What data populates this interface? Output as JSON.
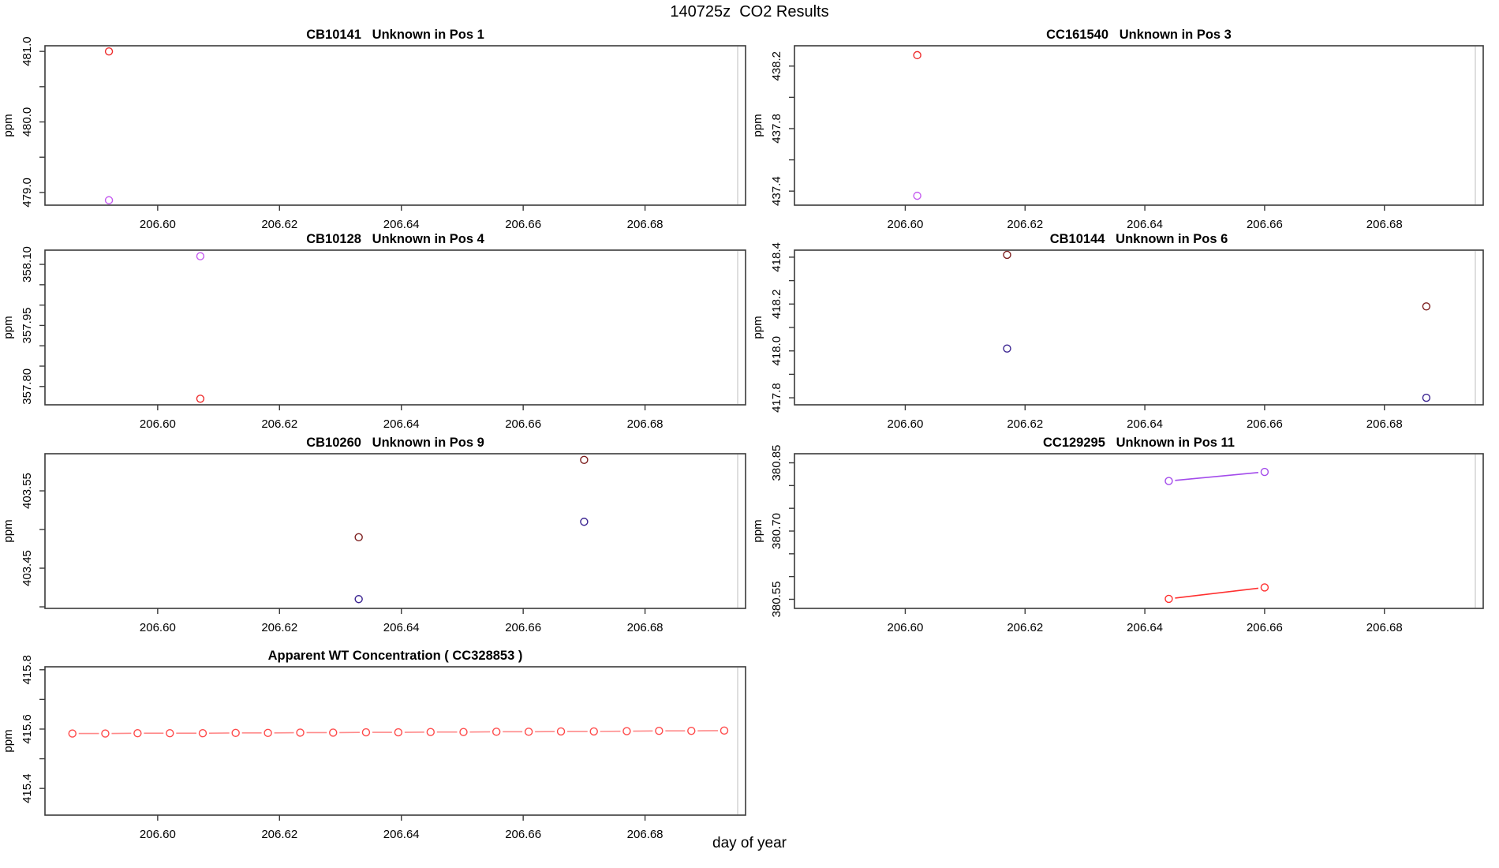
{
  "page": {
    "title": "140725z  CO2 Results",
    "xlabel": "day of year",
    "background": "#ffffff"
  },
  "colors": {
    "bright_red": "#EE2C2C",
    "violet": "#C55BF0",
    "dark_red": "#7D1F1F",
    "dark_blue": "#3B2491",
    "purple_line": "#A34BEB",
    "red_line": "#FF3030",
    "pale_red": "#FF4A4A",
    "pale_red_segment": "#FF8A8A",
    "axis_box": "#3a3a3a",
    "inner_edge_line": "#c8c8c8"
  },
  "chart_data": {
    "type": "scatter",
    "layout": "multipanel",
    "title": "140725z  CO2 Results",
    "xlabel": "day of year",
    "ylabel": "ppm",
    "xlim": [
      206.5815,
      206.6965
    ],
    "x_ticks": [
      {
        "v": 206.6,
        "label": "206.60"
      },
      {
        "v": 206.62,
        "label": "206.62"
      },
      {
        "v": 206.64,
        "label": "206.64"
      },
      {
        "v": 206.66,
        "label": "206.66"
      },
      {
        "v": 206.68,
        "label": "206.68"
      }
    ],
    "panels": [
      {
        "id": "CB10141",
        "title": "CB10141   Unknown in Pos 1",
        "ylabel": "ppm",
        "ylim": [
          478.82,
          481.08
        ],
        "yticks": [
          [
            481.0,
            "481.0"
          ],
          [
            480.5,
            ""
          ],
          [
            480.0,
            "480.0"
          ],
          [
            479.5,
            ""
          ],
          [
            479.0,
            "479.0"
          ]
        ],
        "series": [
          {
            "name": "flask-red",
            "color": "#EE2C2C",
            "type": "points",
            "points": [
              [
                206.592,
                481.0
              ]
            ]
          },
          {
            "name": "flask-violet",
            "color": "#C55BF0",
            "type": "points",
            "points": [
              [
                206.592,
                478.89
              ]
            ]
          }
        ]
      },
      {
        "id": "CC161540",
        "title": "CC161540   Unknown in Pos 3",
        "ylabel": "ppm",
        "ylim": [
          437.31,
          438.33
        ],
        "yticks": [
          [
            438.2,
            "438.2"
          ],
          [
            438.0,
            ""
          ],
          [
            437.8,
            "437.8"
          ],
          [
            437.6,
            ""
          ],
          [
            437.4,
            "437.4"
          ]
        ],
        "series": [
          {
            "name": "flask-red",
            "color": "#EE2C2C",
            "type": "points",
            "points": [
              [
                206.602,
                438.27
              ]
            ]
          },
          {
            "name": "flask-violet",
            "color": "#C55BF0",
            "type": "points",
            "points": [
              [
                206.602,
                437.37
              ]
            ]
          }
        ]
      },
      {
        "id": "CB10128",
        "title": "CB10128   Unknown in Pos 4",
        "ylabel": "ppm",
        "ylim": [
          357.755,
          358.135
        ],
        "yticks": [
          [
            358.1,
            "358.10"
          ],
          [
            358.05,
            ""
          ],
          [
            358.0,
            ""
          ],
          [
            357.95,
            "357.95"
          ],
          [
            357.9,
            ""
          ],
          [
            357.85,
            ""
          ],
          [
            357.8,
            "357.80"
          ]
        ],
        "series": [
          {
            "name": "flask-violet",
            "color": "#C55BF0",
            "type": "points",
            "points": [
              [
                206.607,
                358.12
              ]
            ]
          },
          {
            "name": "flask-red",
            "color": "#EE2C2C",
            "type": "points",
            "points": [
              [
                206.607,
                357.77
              ]
            ]
          }
        ]
      },
      {
        "id": "CB10144",
        "title": "CB10144   Unknown in Pos 6",
        "ylabel": "ppm",
        "ylim": [
          417.77,
          418.43
        ],
        "yticks": [
          [
            418.4,
            "418.4"
          ],
          [
            418.3,
            ""
          ],
          [
            418.2,
            "418.2"
          ],
          [
            418.1,
            ""
          ],
          [
            418.0,
            "418.0"
          ],
          [
            417.9,
            ""
          ],
          [
            417.8,
            "417.8"
          ]
        ],
        "series": [
          {
            "name": "flask-dark-red",
            "color": "#7D1F1F",
            "type": "points",
            "points": [
              [
                206.617,
                418.41
              ],
              [
                206.687,
                418.19
              ]
            ]
          },
          {
            "name": "flask-dark-blue",
            "color": "#3B2491",
            "type": "points",
            "points": [
              [
                206.617,
                418.01
              ],
              [
                206.687,
                417.8
              ]
            ]
          }
        ]
      },
      {
        "id": "CB10260",
        "title": "CB10260   Unknown in Pos 9",
        "ylabel": "ppm",
        "ylim": [
          403.398,
          403.598
        ],
        "yticks": [
          [
            403.55,
            "403.55"
          ],
          [
            403.5,
            ""
          ],
          [
            403.45,
            "403.45"
          ],
          [
            403.4,
            ""
          ]
        ],
        "series": [
          {
            "name": "flask-dark-red",
            "color": "#7D1F1F",
            "type": "points",
            "points": [
              [
                206.633,
                403.49
              ],
              [
                206.67,
                403.59
              ]
            ]
          },
          {
            "name": "flask-dark-blue",
            "color": "#3B2491",
            "type": "points",
            "points": [
              [
                206.633,
                403.41
              ],
              [
                206.67,
                403.51
              ]
            ]
          }
        ]
      },
      {
        "id": "CC129295",
        "title": "CC129295   Unknown in Pos 11",
        "ylabel": "ppm",
        "ylim": [
          380.53,
          380.87
        ],
        "yticks": [
          [
            380.85,
            "380.85"
          ],
          [
            380.8,
            ""
          ],
          [
            380.75,
            ""
          ],
          [
            380.7,
            "380.70"
          ],
          [
            380.65,
            ""
          ],
          [
            380.6,
            ""
          ],
          [
            380.55,
            "380.55"
          ]
        ],
        "series": [
          {
            "name": "pair-purple",
            "color": "#A34BEB",
            "type": "line",
            "points": [
              [
                206.644,
                380.81
              ],
              [
                206.66,
                380.83
              ]
            ]
          },
          {
            "name": "pair-red",
            "color": "#FF3030",
            "type": "line",
            "points": [
              [
                206.644,
                380.551
              ],
              [
                206.66,
                380.576
              ]
            ]
          }
        ]
      },
      {
        "id": "CC328853",
        "title": "Apparent WT Concentration ( CC328853 )",
        "ylabel": "ppm",
        "ylim": [
          415.31,
          415.81
        ],
        "yticks": [
          [
            415.8,
            "415.8"
          ],
          [
            415.7,
            ""
          ],
          [
            415.6,
            "415.6"
          ],
          [
            415.5,
            ""
          ],
          [
            415.4,
            "415.4"
          ]
        ],
        "series": [
          {
            "name": "wt-trend",
            "color": "#FF4A4A",
            "line_color": "#FF8A8A",
            "type": "line",
            "points": [
              [
                206.586,
                415.585
              ],
              [
                206.5914,
                415.585
              ],
              [
                206.5967,
                415.586
              ],
              [
                206.602,
                415.586
              ],
              [
                206.6074,
                415.586
              ],
              [
                206.6128,
                415.587
              ],
              [
                206.6181,
                415.587
              ],
              [
                206.6234,
                415.588
              ],
              [
                206.6288,
                415.588
              ],
              [
                206.6342,
                415.589
              ],
              [
                206.6395,
                415.589
              ],
              [
                206.6448,
                415.59
              ],
              [
                206.6502,
                415.59
              ],
              [
                206.6556,
                415.591
              ],
              [
                206.6609,
                415.591
              ],
              [
                206.6662,
                415.592
              ],
              [
                206.6716,
                415.592
              ],
              [
                206.677,
                415.593
              ],
              [
                206.6823,
                415.594
              ],
              [
                206.6876,
                415.594
              ],
              [
                206.693,
                415.595
              ]
            ]
          }
        ]
      }
    ]
  }
}
